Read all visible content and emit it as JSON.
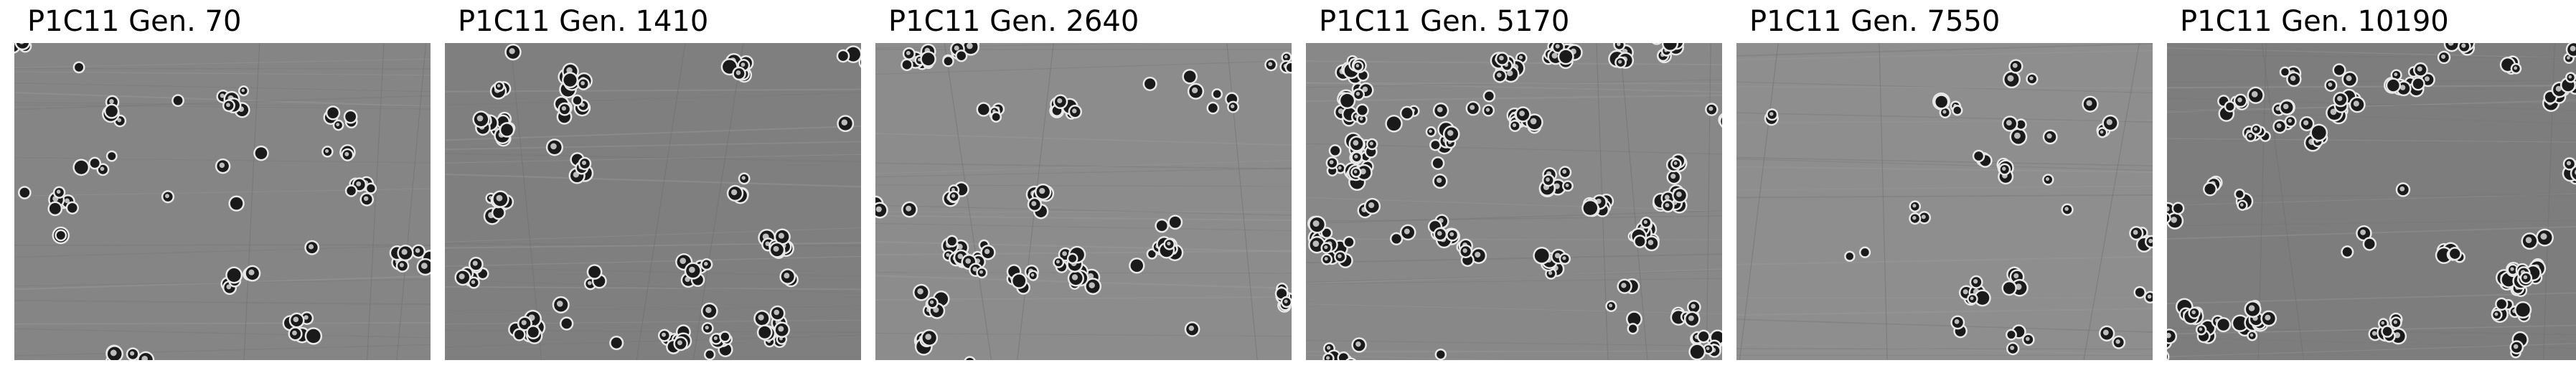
{
  "panels": [
    {
      "title": "P1C11 Gen. 70",
      "density": 0.95,
      "tone": "#858585"
    },
    {
      "title": "P1C11 Gen. 1410",
      "density": 1.15,
      "tone": "#7f7f7f"
    },
    {
      "title": "P1C11 Gen. 2640",
      "density": 1.05,
      "tone": "#8c8c8c"
    },
    {
      "title": "P1C11 Gen. 5170",
      "density": 1.55,
      "tone": "#888888"
    },
    {
      "title": "P1C11 Gen. 7550",
      "density": 0.75,
      "tone": "#8e8e8e"
    },
    {
      "title": "P1C11 Gen. 10190",
      "density": 1.35,
      "tone": "#7d7d7d"
    }
  ]
}
